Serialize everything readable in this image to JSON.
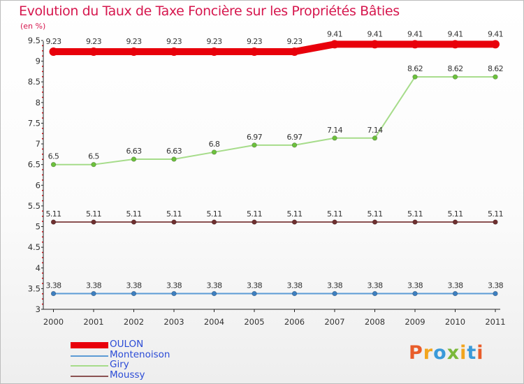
{
  "title": "Evolution du Taux de Taxe Foncière sur les Propriétés Bâties",
  "subtitle": "(en %)",
  "chart_data": {
    "type": "line",
    "title": "Evolution du Taux de Taxe Foncière sur les Propriétés Bâties",
    "ylabel": "(en %)",
    "xlabel": "",
    "x": [
      "2000",
      "2001",
      "2002",
      "2003",
      "2004",
      "2005",
      "2006",
      "2007",
      "2008",
      "2009",
      "2010",
      "2011"
    ],
    "ylim": [
      3,
      9.5
    ],
    "yticks": [
      3,
      3.5,
      4,
      4.5,
      5,
      5.5,
      6,
      6.5,
      7,
      7.5,
      8,
      8.5,
      9,
      9.5
    ],
    "grid": false,
    "legend_position": "bottom-left",
    "series": [
      {
        "name": "OULON",
        "color": "#e8000b",
        "highlight": true,
        "values": [
          9.23,
          9.23,
          9.23,
          9.23,
          9.23,
          9.23,
          9.23,
          9.41,
          9.41,
          9.41,
          9.41,
          9.41
        ],
        "labels": [
          "9.23",
          "9.23",
          "9.23",
          "9.23",
          "9.23",
          "9.23",
          "9.23",
          "9.41",
          "9.41",
          "9.41",
          "9.41",
          "9.41"
        ]
      },
      {
        "name": "Montenoison",
        "color": "#5b9bd5",
        "marker_fill": "#3d7fc0",
        "values": [
          3.38,
          3.38,
          3.38,
          3.38,
          3.38,
          3.38,
          3.38,
          3.38,
          3.38,
          3.38,
          3.38,
          3.38
        ],
        "labels": [
          "3.38",
          "3.38",
          "3.38",
          "3.38",
          "3.38",
          "3.38",
          "3.38",
          "3.38",
          "3.38",
          "3.38",
          "3.38",
          "3.38"
        ]
      },
      {
        "name": "Giry",
        "color": "#a6dc8a",
        "marker_fill": "#6cc13c",
        "values": [
          6.5,
          6.5,
          6.63,
          6.63,
          6.8,
          6.97,
          6.97,
          7.14,
          7.14,
          8.62,
          8.62,
          8.62
        ],
        "labels": [
          "6.5",
          "6.5",
          "6.63",
          "6.63",
          "6.8",
          "6.97",
          "6.97",
          "7.14",
          "7.14",
          "8.62",
          "8.62",
          "8.62"
        ]
      },
      {
        "name": "Moussy",
        "color": "#8b5252",
        "marker_fill": "#6e2f2f",
        "values": [
          5.11,
          5.11,
          5.11,
          5.11,
          5.11,
          5.11,
          5.11,
          5.11,
          5.11,
          5.11,
          5.11,
          5.11
        ],
        "labels": [
          "5.11",
          "5.11",
          "5.11",
          "5.11",
          "5.11",
          "5.11",
          "5.11",
          "5.11",
          "5.11",
          "5.11",
          "5.11",
          "5.11"
        ]
      }
    ]
  },
  "logo": {
    "text": "Proxiti",
    "colors": [
      "#e85d2a",
      "#f2a51e",
      "#3a9ad9",
      "#7ab83a",
      "#f2a51e",
      "#3a9ad9",
      "#e85d2a"
    ]
  }
}
